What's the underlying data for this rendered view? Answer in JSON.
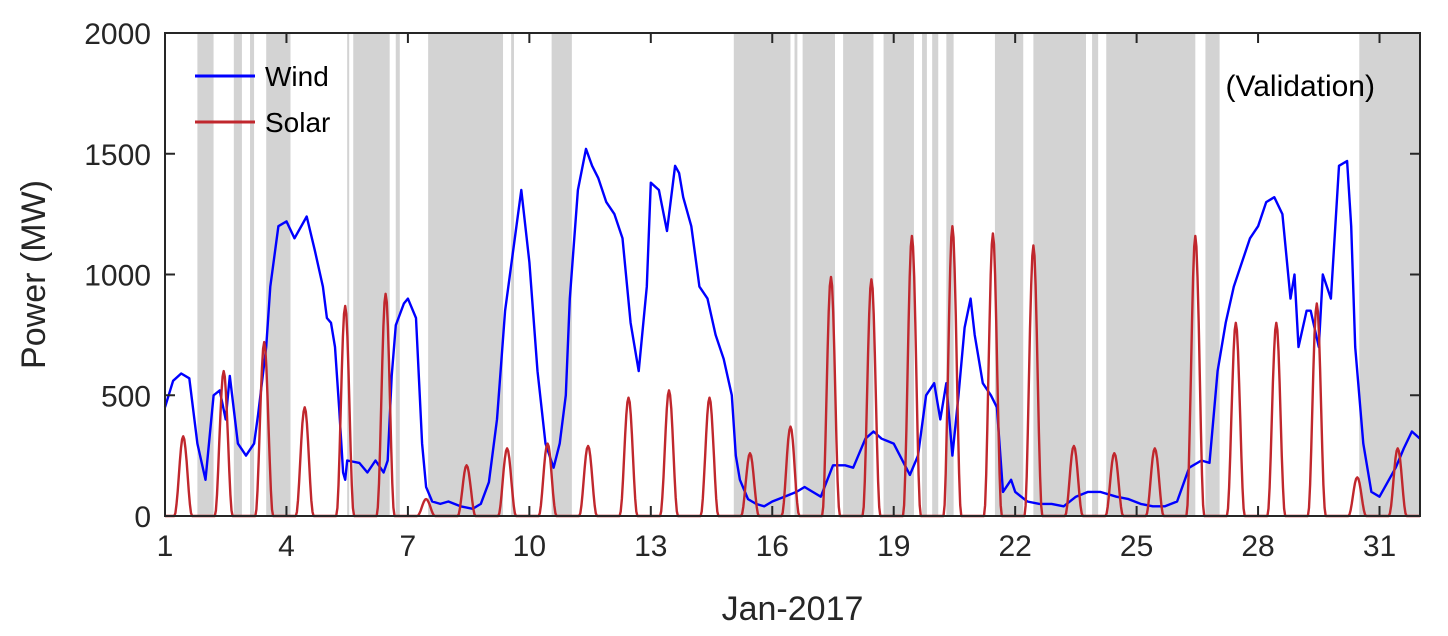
{
  "chart_data": {
    "type": "line",
    "annotation": "(Validation)",
    "xlabel": "Jan-2017",
    "ylabel": "Power (MW)",
    "xlim": [
      1,
      32
    ],
    "ylim": [
      0,
      2000
    ],
    "x_ticks": [
      1,
      4,
      7,
      10,
      13,
      16,
      19,
      22,
      25,
      28,
      31
    ],
    "y_ticks": [
      0,
      500,
      1000,
      1500,
      2000
    ],
    "grid": false,
    "legend_position": "top-left",
    "shaded_color": "#d3d3d3",
    "shaded_intervals": [
      [
        1.8,
        2.2
      ],
      [
        2.7,
        2.9
      ],
      [
        3.1,
        3.2
      ],
      [
        3.5,
        4.1
      ],
      [
        5.5,
        5.55
      ],
      [
        5.65,
        6.55
      ],
      [
        6.7,
        6.8
      ],
      [
        7.5,
        9.35
      ],
      [
        9.55,
        9.62
      ],
      [
        10.55,
        11.05
      ],
      [
        15.05,
        16.45
      ],
      [
        16.55,
        16.62
      ],
      [
        16.75,
        17.55
      ],
      [
        17.75,
        18.5
      ],
      [
        18.75,
        19.5
      ],
      [
        19.7,
        19.82
      ],
      [
        19.95,
        20.1
      ],
      [
        20.3,
        20.48
      ],
      [
        21.5,
        22.2
      ],
      [
        22.45,
        23.75
      ],
      [
        23.9,
        24.05
      ],
      [
        24.25,
        26.45
      ],
      [
        26.7,
        27.05
      ],
      [
        30.5,
        32
      ]
    ],
    "series": [
      {
        "name": "Wind",
        "color": "#0000ff",
        "x": [
          1,
          1.2,
          1.4,
          1.6,
          1.8,
          2,
          2.2,
          2.35,
          2.5,
          2.6,
          2.8,
          3.0,
          3.2,
          3.3,
          3.5,
          3.6,
          3.8,
          4.0,
          4.2,
          4.5,
          4.7,
          4.9,
          5.0,
          5.1,
          5.2,
          5.3,
          5.4,
          5.45,
          5.5,
          5.8,
          6.0,
          6.2,
          6.4,
          6.5,
          6.6,
          6.7,
          6.9,
          7.0,
          7.2,
          7.35,
          7.45,
          7.6,
          7.8,
          8.0,
          8.3,
          8.6,
          8.8,
          9.0,
          9.2,
          9.4,
          9.6,
          9.8,
          10.0,
          10.2,
          10.4,
          10.6,
          10.75,
          10.9,
          11.0,
          11.2,
          11.4,
          11.55,
          11.7,
          11.9,
          12.1,
          12.3,
          12.5,
          12.7,
          12.9,
          13.0,
          13.2,
          13.4,
          13.6,
          13.7,
          13.8,
          14.0,
          14.2,
          14.4,
          14.6,
          14.8,
          15.0,
          15.1,
          15.2,
          15.4,
          15.6,
          15.8,
          16.0,
          16.3,
          16.6,
          16.8,
          17.0,
          17.2,
          17.5,
          17.8,
          18.0,
          18.3,
          18.5,
          18.7,
          19.0,
          19.4,
          19.6,
          19.8,
          20.0,
          20.15,
          20.3,
          20.45,
          20.6,
          20.75,
          20.9,
          21.0,
          21.2,
          21.4,
          21.55,
          21.7,
          21.9,
          22.0,
          22.3,
          22.6,
          22.9,
          23.2,
          23.5,
          23.8,
          24.1,
          24.5,
          24.8,
          25.1,
          25.4,
          25.7,
          26.0,
          26.3,
          26.6,
          26.8,
          27.0,
          27.2,
          27.4,
          27.6,
          27.8,
          28.0,
          28.2,
          28.4,
          28.6,
          28.8,
          28.9,
          29.0,
          29.2,
          29.3,
          29.5,
          29.6,
          29.8,
          30.0,
          30.2,
          30.3,
          30.4,
          30.6,
          30.8,
          31.0,
          31.2,
          31.4,
          31.6,
          31.8,
          32.0
        ],
        "values": [
          450,
          560,
          590,
          570,
          300,
          150,
          500,
          520,
          400,
          580,
          300,
          250,
          300,
          420,
          700,
          950,
          1200,
          1220,
          1150,
          1240,
          1100,
          950,
          820,
          800,
          700,
          450,
          180,
          150,
          230,
          220,
          180,
          230,
          180,
          230,
          580,
          790,
          880,
          900,
          820,
          300,
          120,
          60,
          50,
          60,
          40,
          30,
          50,
          140,
          400,
          850,
          1100,
          1350,
          1050,
          600,
          300,
          200,
          300,
          500,
          900,
          1350,
          1520,
          1450,
          1400,
          1300,
          1250,
          1150,
          800,
          600,
          950,
          1380,
          1350,
          1180,
          1450,
          1420,
          1320,
          1200,
          950,
          900,
          750,
          650,
          500,
          250,
          150,
          70,
          50,
          40,
          60,
          80,
          100,
          120,
          100,
          80,
          210,
          210,
          200,
          320,
          350,
          320,
          300,
          170,
          250,
          500,
          550,
          400,
          550,
          250,
          500,
          780,
          900,
          750,
          550,
          500,
          450,
          100,
          150,
          100,
          60,
          50,
          50,
          40,
          80,
          100,
          100,
          80,
          70,
          50,
          40,
          40,
          60,
          200,
          230,
          220,
          600,
          800,
          950,
          1050,
          1150,
          1200,
          1300,
          1320,
          1250,
          900,
          1000,
          700,
          850,
          850,
          700,
          1000,
          900,
          1450,
          1470,
          1200,
          700,
          300,
          100,
          80,
          140,
          200,
          280,
          350,
          320
        ]
      },
      {
        "name": "Solar",
        "color": "#c0272d",
        "peaks": [
          {
            "x": 1.45,
            "v": 330
          },
          {
            "x": 2.45,
            "v": 600
          },
          {
            "x": 3.45,
            "v": 720
          },
          {
            "x": 4.45,
            "v": 450
          },
          {
            "x": 5.45,
            "v": 870
          },
          {
            "x": 6.45,
            "v": 920
          },
          {
            "x": 7.45,
            "v": 70
          },
          {
            "x": 8.45,
            "v": 210
          },
          {
            "x": 9.45,
            "v": 280
          },
          {
            "x": 10.45,
            "v": 300
          },
          {
            "x": 11.45,
            "v": 290
          },
          {
            "x": 12.45,
            "v": 490
          },
          {
            "x": 13.45,
            "v": 520
          },
          {
            "x": 14.45,
            "v": 490
          },
          {
            "x": 15.45,
            "v": 260
          },
          {
            "x": 16.45,
            "v": 370
          },
          {
            "x": 17.45,
            "v": 990
          },
          {
            "x": 18.45,
            "v": 980
          },
          {
            "x": 19.45,
            "v": 1160
          },
          {
            "x": 20.45,
            "v": 1200
          },
          {
            "x": 21.45,
            "v": 1170
          },
          {
            "x": 22.45,
            "v": 1120
          },
          {
            "x": 23.45,
            "v": 290
          },
          {
            "x": 24.45,
            "v": 260
          },
          {
            "x": 25.45,
            "v": 280
          },
          {
            "x": 26.45,
            "v": 1160
          },
          {
            "x": 27.45,
            "v": 800
          },
          {
            "x": 28.45,
            "v": 800
          },
          {
            "x": 29.45,
            "v": 880
          },
          {
            "x": 30.45,
            "v": 160
          },
          {
            "x": 31.45,
            "v": 280
          }
        ]
      }
    ]
  }
}
